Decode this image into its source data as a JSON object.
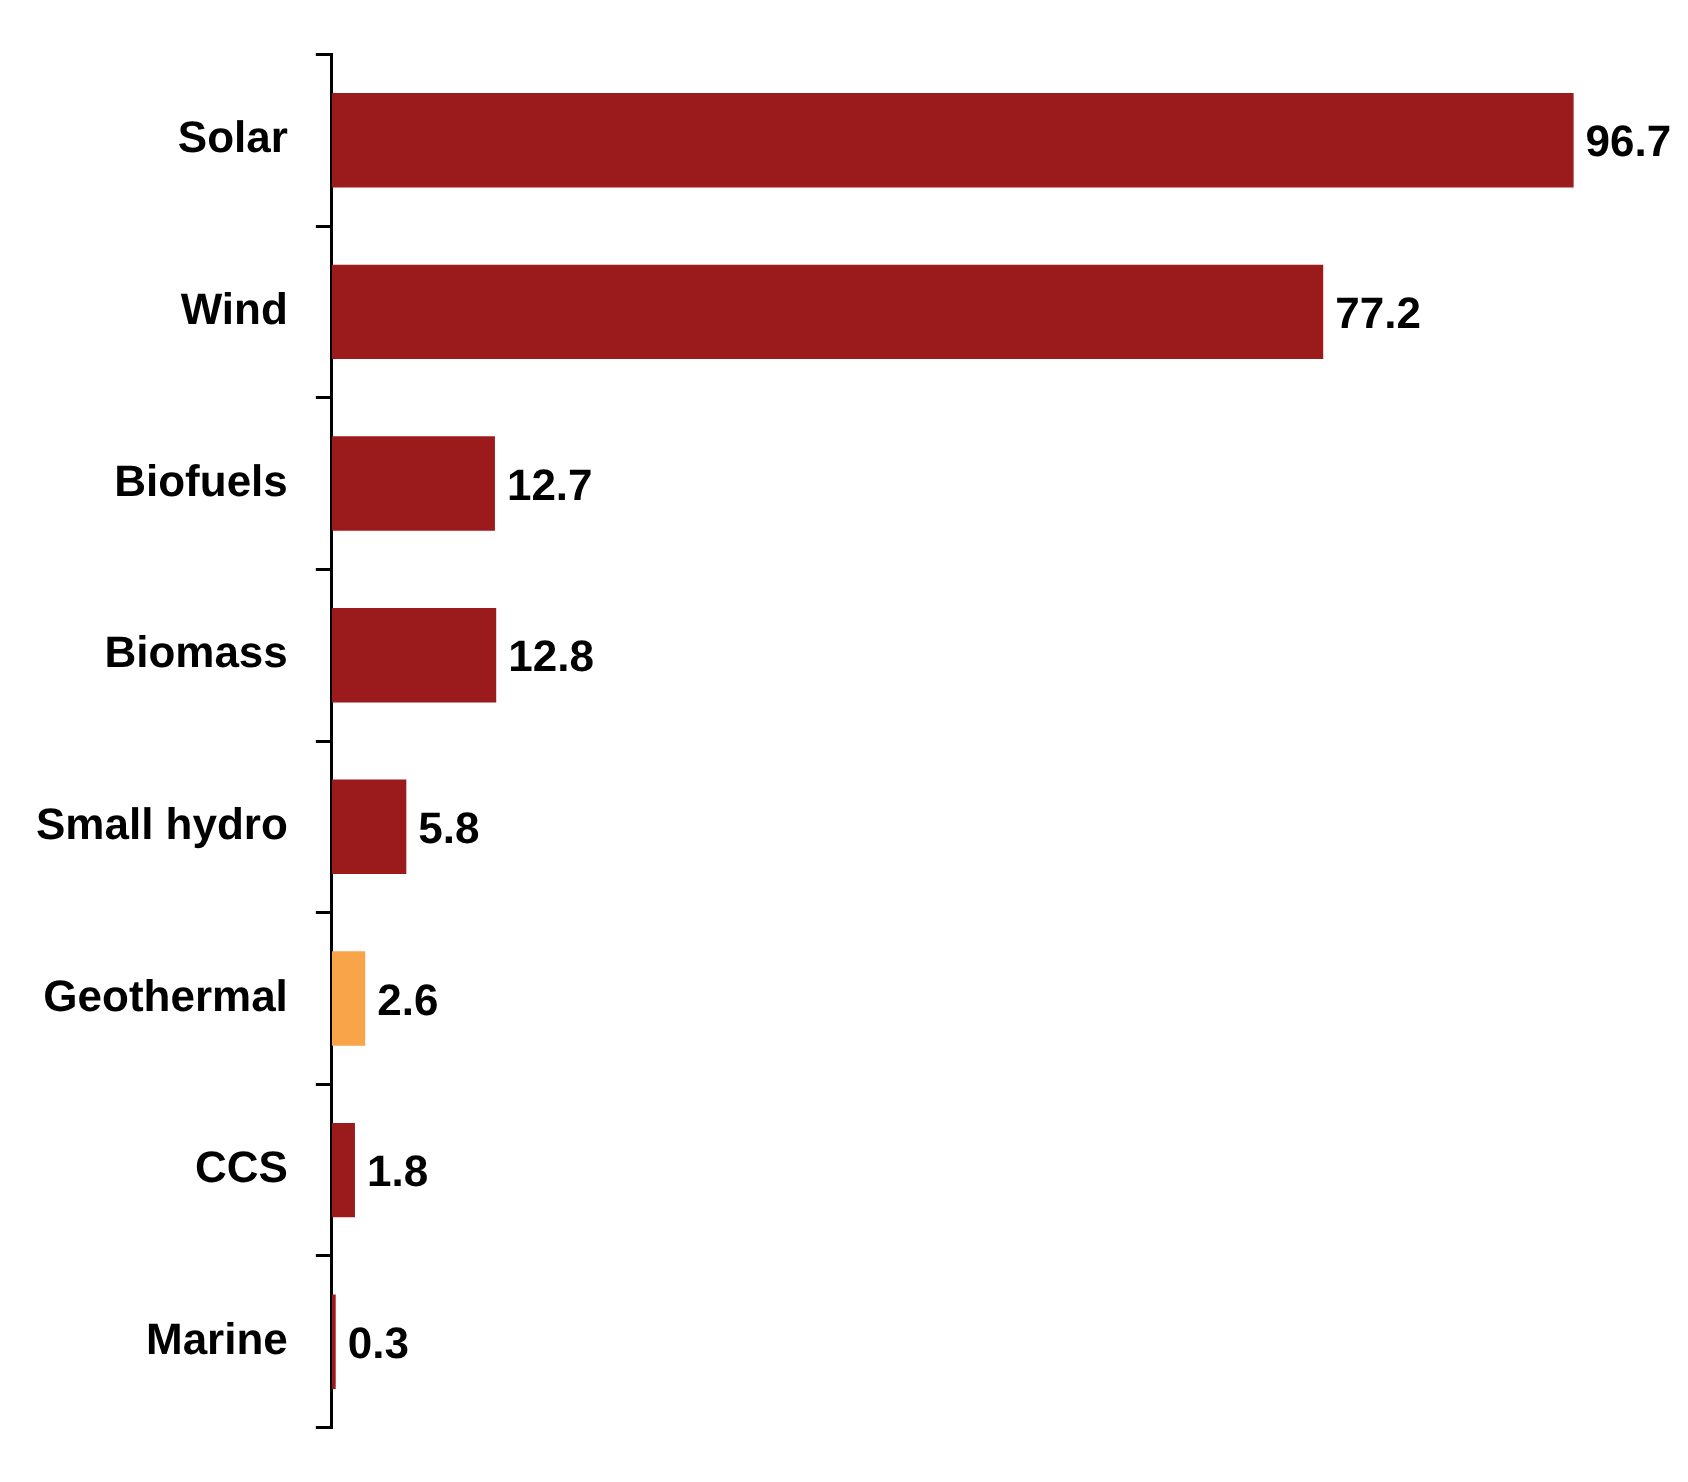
{
  "chart_data": {
    "type": "bar",
    "orientation": "horizontal",
    "categories": [
      "Solar",
      "Wind",
      "Biofuels",
      "Biomass",
      "Small hydro",
      "Geothermal",
      "CCS",
      "Marine"
    ],
    "values": [
      96.7,
      77.2,
      12.7,
      12.8,
      5.8,
      2.6,
      1.8,
      0.3
    ],
    "colors": [
      "#9b1a1c",
      "#9b1a1c",
      "#9b1a1c",
      "#9b1a1c",
      "#9b1a1c",
      "#f9a449",
      "#9b1a1c",
      "#9b1a1c"
    ],
    "data_labels": true,
    "grid": false,
    "legend": false,
    "tick_labels": "y"
  }
}
